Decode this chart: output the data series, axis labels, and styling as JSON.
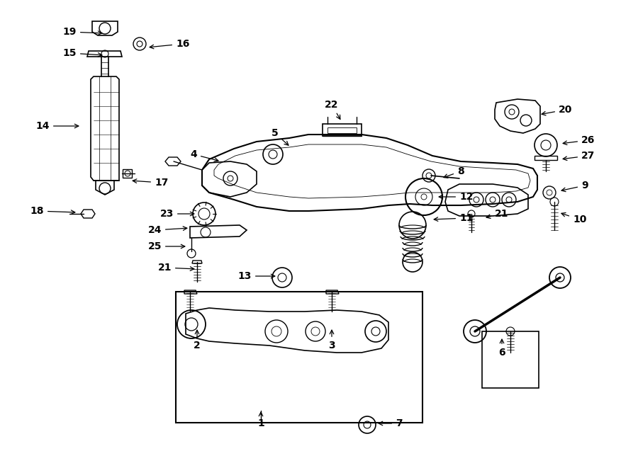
{
  "bg": "#ffffff",
  "fw": 9.0,
  "fh": 6.61,
  "dpi": 100,
  "lw": 1.0,
  "labels": [
    [
      "19",
      108,
      45,
      148,
      47,
      "right"
    ],
    [
      "16",
      248,
      62,
      207,
      67,
      "left"
    ],
    [
      "15",
      108,
      75,
      148,
      78,
      "right"
    ],
    [
      "14",
      70,
      178,
      115,
      178,
      "right"
    ],
    [
      "17",
      218,
      258,
      183,
      255,
      "left"
    ],
    [
      "18",
      62,
      298,
      110,
      300,
      "right"
    ],
    [
      "4",
      278,
      218,
      312,
      228,
      "right"
    ],
    [
      "5",
      388,
      188,
      410,
      208,
      "center"
    ],
    [
      "22",
      468,
      148,
      482,
      172,
      "center"
    ],
    [
      "8",
      645,
      242,
      622,
      252,
      "left"
    ],
    [
      "20",
      788,
      155,
      760,
      162,
      "left"
    ],
    [
      "26",
      820,
      198,
      790,
      203,
      "left"
    ],
    [
      "27",
      820,
      220,
      790,
      225,
      "left"
    ],
    [
      "9",
      820,
      262,
      788,
      270,
      "left"
    ],
    [
      "10",
      808,
      310,
      788,
      300,
      "left"
    ],
    [
      "12",
      648,
      278,
      615,
      278,
      "left"
    ],
    [
      "11",
      648,
      308,
      608,
      310,
      "left"
    ],
    [
      "21",
      698,
      302,
      682,
      308,
      "left"
    ],
    [
      "23",
      245,
      302,
      278,
      302,
      "right"
    ],
    [
      "24",
      228,
      325,
      268,
      322,
      "right"
    ],
    [
      "25",
      228,
      348,
      265,
      348,
      "right"
    ],
    [
      "21",
      242,
      378,
      278,
      380,
      "right"
    ],
    [
      "13",
      355,
      390,
      392,
      390,
      "right"
    ],
    [
      "2",
      278,
      488,
      278,
      462,
      "center"
    ],
    [
      "3",
      468,
      488,
      468,
      462,
      "center"
    ],
    [
      "1",
      368,
      598,
      368,
      578,
      "center"
    ],
    [
      "7",
      558,
      598,
      530,
      598,
      "left"
    ],
    [
      "6",
      708,
      498,
      708,
      475,
      "center"
    ]
  ]
}
